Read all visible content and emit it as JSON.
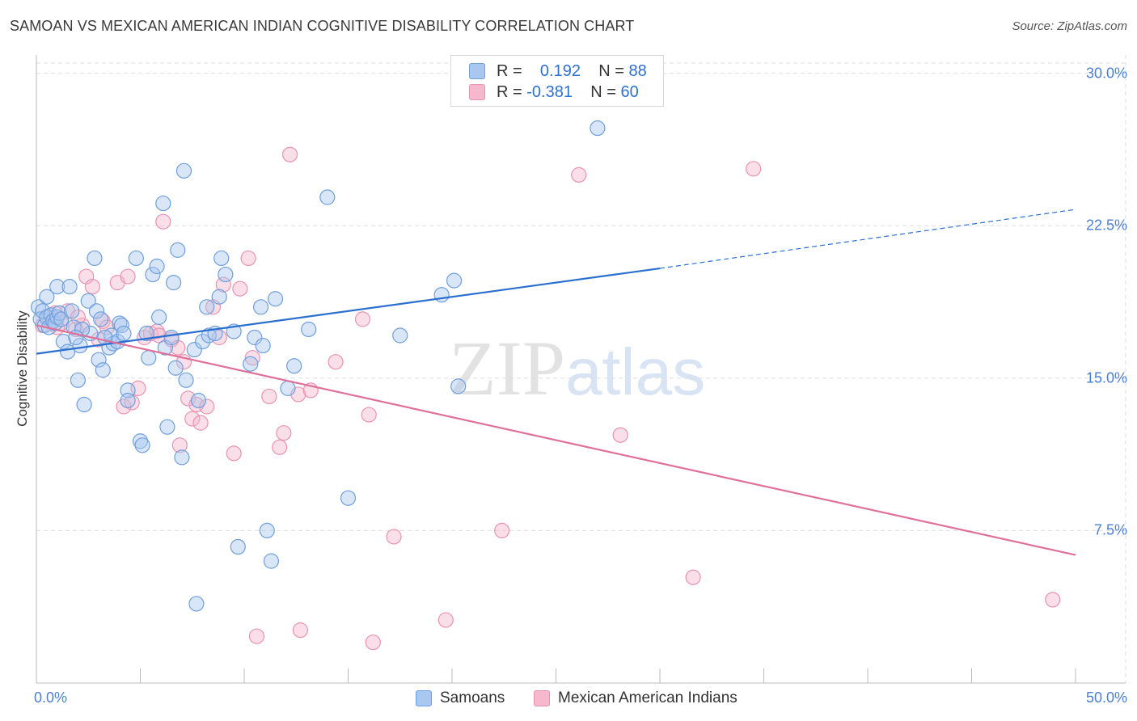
{
  "title": "SAMOAN VS MEXICAN AMERICAN INDIAN COGNITIVE DISABILITY CORRELATION CHART",
  "source": "Source: ZipAtlas.com",
  "watermark": {
    "zip": "ZIP",
    "atlas": "atlas"
  },
  "legend": {
    "rows": [
      {
        "r_label": "R =",
        "r_value": "0.192",
        "n_label": "N =",
        "n_value": "88"
      },
      {
        "r_label": "R =",
        "r_value": "-0.381",
        "n_label": "N =",
        "n_value": "60"
      }
    ]
  },
  "colors": {
    "blue_fill": "#a9c8f0",
    "blue_stroke": "#6f9fdc",
    "blue_line": "#2a6fd0",
    "pink_fill": "#f5b8cc",
    "pink_stroke": "#e993b0",
    "pink_line": "#e0709a",
    "grid": "#dddddd",
    "tick_text": "#4a7fd4"
  },
  "chart_data": {
    "type": "scatter",
    "title": "SAMOAN VS MEXICAN AMERICAN INDIAN COGNITIVE DISABILITY CORRELATION CHART",
    "xlabel": "",
    "ylabel": "Cognitive Disability",
    "xlim": [
      0,
      50
    ],
    "ylim": [
      0,
      30.9
    ],
    "x_tick_labels": [
      "0.0%",
      "50.0%"
    ],
    "y_ticks": [
      7.5,
      15.0,
      22.5,
      30.0
    ],
    "y_tick_labels": [
      "7.5%",
      "15.0%",
      "22.5%",
      "30.0%"
    ],
    "grid": true,
    "legend_position": "bottom",
    "series": [
      {
        "name": "Samoans",
        "r": 0.192,
        "n": 88,
        "trend": {
          "x0": 0,
          "y0": 16.2,
          "x1": 30,
          "y1": 20.4,
          "dashed_to_x": 50,
          "dashed_to_y": 23.3
        },
        "points": [
          [
            0.1,
            18.5
          ],
          [
            0.2,
            17.9
          ],
          [
            0.3,
            18.3
          ],
          [
            0.4,
            17.6
          ],
          [
            0.5,
            18.0
          ],
          [
            0.6,
            17.5
          ],
          [
            0.7,
            18.1
          ],
          [
            0.8,
            17.8
          ],
          [
            0.9,
            17.7
          ],
          [
            1.0,
            18.0
          ],
          [
            1.0,
            19.5
          ],
          [
            1.1,
            18.2
          ],
          [
            1.2,
            17.9
          ],
          [
            1.3,
            16.8
          ],
          [
            1.5,
            16.3
          ],
          [
            1.6,
            19.5
          ],
          [
            1.7,
            18.3
          ],
          [
            1.8,
            17.5
          ],
          [
            2.0,
            14.9
          ],
          [
            2.1,
            16.6
          ],
          [
            2.3,
            13.7
          ],
          [
            2.5,
            18.8
          ],
          [
            2.6,
            17.2
          ],
          [
            2.8,
            20.9
          ],
          [
            2.9,
            18.3
          ],
          [
            3.0,
            15.9
          ],
          [
            3.1,
            17.9
          ],
          [
            3.2,
            15.4
          ],
          [
            3.5,
            16.5
          ],
          [
            3.6,
            17.1
          ],
          [
            3.7,
            16.7
          ],
          [
            3.9,
            16.8
          ],
          [
            4.0,
            17.7
          ],
          [
            4.1,
            17.6
          ],
          [
            4.4,
            14.4
          ],
          [
            4.4,
            13.9
          ],
          [
            4.8,
            20.9
          ],
          [
            5.0,
            11.9
          ],
          [
            5.1,
            11.7
          ],
          [
            5.3,
            17.2
          ],
          [
            5.4,
            16.0
          ],
          [
            5.6,
            20.1
          ],
          [
            5.8,
            20.5
          ],
          [
            6.1,
            23.6
          ],
          [
            6.2,
            16.5
          ],
          [
            6.3,
            12.6
          ],
          [
            6.6,
            19.7
          ],
          [
            6.7,
            15.5
          ],
          [
            6.8,
            21.3
          ],
          [
            7.0,
            11.1
          ],
          [
            7.1,
            25.2
          ],
          [
            7.2,
            14.9
          ],
          [
            7.6,
            16.4
          ],
          [
            7.7,
            3.9
          ],
          [
            7.8,
            13.9
          ],
          [
            8.0,
            16.8
          ],
          [
            8.2,
            18.5
          ],
          [
            8.3,
            17.1
          ],
          [
            8.6,
            17.2
          ],
          [
            8.8,
            19.0
          ],
          [
            8.9,
            20.9
          ],
          [
            9.1,
            20.1
          ],
          [
            9.7,
            6.7
          ],
          [
            10.3,
            15.7
          ],
          [
            10.5,
            17.0
          ],
          [
            10.8,
            18.5
          ],
          [
            10.9,
            16.6
          ],
          [
            11.1,
            7.5
          ],
          [
            11.3,
            6.0
          ],
          [
            11.5,
            18.9
          ],
          [
            12.1,
            14.5
          ],
          [
            12.4,
            15.6
          ],
          [
            13.1,
            17.4
          ],
          [
            14.0,
            23.9
          ],
          [
            15.0,
            9.1
          ],
          [
            17.5,
            17.1
          ],
          [
            19.5,
            19.1
          ],
          [
            20.1,
            19.8
          ],
          [
            20.3,
            14.6
          ],
          [
            27.0,
            27.3
          ],
          [
            4.2,
            17.2
          ],
          [
            6.5,
            17.0
          ],
          [
            2.2,
            17.4
          ],
          [
            9.5,
            17.3
          ],
          [
            0.5,
            19.0
          ],
          [
            3.3,
            17.0
          ],
          [
            5.9,
            18.0
          ],
          [
            1.9,
            17.0
          ]
        ]
      },
      {
        "name": "Mexican American Indians",
        "r": -0.381,
        "n": 60,
        "trend": {
          "x0": 0,
          "y0": 17.6,
          "x1": 50,
          "y1": 6.3
        },
        "points": [
          [
            0.3,
            17.6
          ],
          [
            0.6,
            18.0
          ],
          [
            0.9,
            18.2
          ],
          [
            1.2,
            17.7
          ],
          [
            1.5,
            18.3
          ],
          [
            1.9,
            17.4
          ],
          [
            2.2,
            17.6
          ],
          [
            2.4,
            20.0
          ],
          [
            2.7,
            19.5
          ],
          [
            3.0,
            16.9
          ],
          [
            3.2,
            17.8
          ],
          [
            3.4,
            17.5
          ],
          [
            3.9,
            19.7
          ],
          [
            4.2,
            13.6
          ],
          [
            4.4,
            20.0
          ],
          [
            4.6,
            13.8
          ],
          [
            4.9,
            14.5
          ],
          [
            5.2,
            17.0
          ],
          [
            5.5,
            17.2
          ],
          [
            5.8,
            17.3
          ],
          [
            5.9,
            17.1
          ],
          [
            6.1,
            22.7
          ],
          [
            6.5,
            16.9
          ],
          [
            6.8,
            16.5
          ],
          [
            6.9,
            11.7
          ],
          [
            7.1,
            15.8
          ],
          [
            7.3,
            14.0
          ],
          [
            7.5,
            13.0
          ],
          [
            7.7,
            13.7
          ],
          [
            7.9,
            12.8
          ],
          [
            8.2,
            13.6
          ],
          [
            8.5,
            18.5
          ],
          [
            8.8,
            17.0
          ],
          [
            9.0,
            19.6
          ],
          [
            9.5,
            11.3
          ],
          [
            9.8,
            19.4
          ],
          [
            10.2,
            20.9
          ],
          [
            10.4,
            16.0
          ],
          [
            10.6,
            2.3
          ],
          [
            11.2,
            14.1
          ],
          [
            11.7,
            11.6
          ],
          [
            11.9,
            12.3
          ],
          [
            12.2,
            26.0
          ],
          [
            12.6,
            14.2
          ],
          [
            12.7,
            2.6
          ],
          [
            13.2,
            14.4
          ],
          [
            14.4,
            15.8
          ],
          [
            15.7,
            17.9
          ],
          [
            16.0,
            13.2
          ],
          [
            16.2,
            2.0
          ],
          [
            17.2,
            7.2
          ],
          [
            19.7,
            3.1
          ],
          [
            22.4,
            7.5
          ],
          [
            26.1,
            25.0
          ],
          [
            28.1,
            12.2
          ],
          [
            31.6,
            5.2
          ],
          [
            34.5,
            25.3
          ],
          [
            48.9,
            4.1
          ],
          [
            2.0,
            18.0
          ],
          [
            1.0,
            17.5
          ]
        ]
      }
    ]
  },
  "bottom_legend": [
    {
      "label": "Samoans"
    },
    {
      "label": "Mexican American Indians"
    }
  ]
}
